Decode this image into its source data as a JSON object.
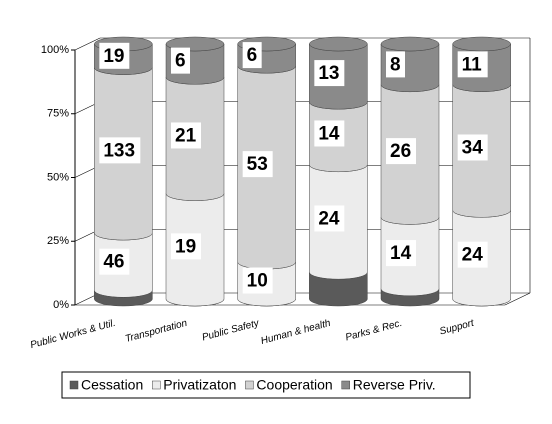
{
  "chart_data": {
    "type": "stacked_cylinder_100",
    "categories": [
      "Public Works & Util.",
      "Transportation",
      "Public Safety",
      "Human & health",
      "Parks & Rec.",
      "Support"
    ],
    "series": [
      {
        "name": "Cessation",
        "color": "#5a5a5a",
        "values": [
          7,
          0,
          0,
          6,
          2,
          0
        ]
      },
      {
        "name": "Privatizaton",
        "color": "#ececec",
        "values": [
          46,
          19,
          10,
          24,
          14,
          24
        ]
      },
      {
        "name": "Cooperation",
        "color": "#d2d2d2",
        "values": [
          133,
          21,
          53,
          14,
          26,
          34
        ]
      },
      {
        "name": "Reverse Priv.",
        "color": "#8a8a8a",
        "values": [
          19,
          6,
          6,
          13,
          8,
          11
        ]
      }
    ],
    "labeled_series": [
      1,
      2,
      3
    ],
    "ylim": [
      0,
      100
    ],
    "yticks": [
      {
        "value": 0,
        "label": "0%"
      },
      {
        "value": 25,
        "label": "25%"
      },
      {
        "value": 50,
        "label": "50%"
      },
      {
        "value": 75,
        "label": "75%"
      },
      {
        "value": 100,
        "label": "100%"
      }
    ],
    "grid": true,
    "legend": "bottom"
  }
}
